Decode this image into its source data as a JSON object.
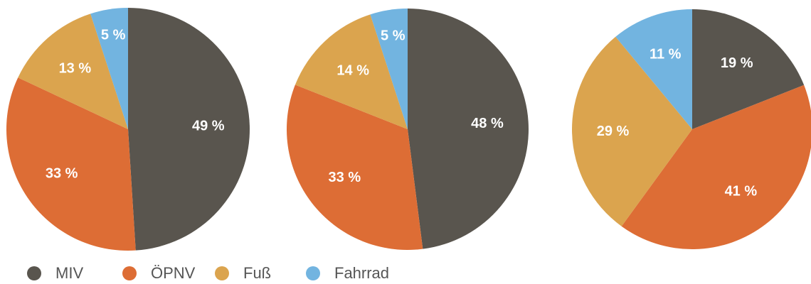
{
  "chart_data": [
    {
      "type": "pie",
      "categories": [
        "MIV",
        "ÖPNV",
        "Fuß",
        "Fahrrad"
      ],
      "values": [
        49,
        33,
        13,
        5
      ],
      "value_labels": [
        "49 %",
        "33 %",
        "13 %",
        "5 %"
      ],
      "colors": [
        "#59554e",
        "#dd6d35",
        "#dba44e",
        "#72b4e0"
      ]
    },
    {
      "type": "pie",
      "values": [
        48,
        33,
        14,
        5
      ],
      "value_labels": [
        "48 %",
        "33 %",
        "14 %",
        "5 %"
      ],
      "colors": [
        "#59554e",
        "#dd6d35",
        "#dba44e",
        "#72b4e0"
      ]
    },
    {
      "type": "pie",
      "values": [
        19,
        41,
        29,
        11
      ],
      "value_labels": [
        "19 %",
        "41 %",
        "29 %",
        "11 %"
      ],
      "colors": [
        "#59554e",
        "#dd6d35",
        "#dba44e",
        "#72b4e0"
      ]
    }
  ]
}
